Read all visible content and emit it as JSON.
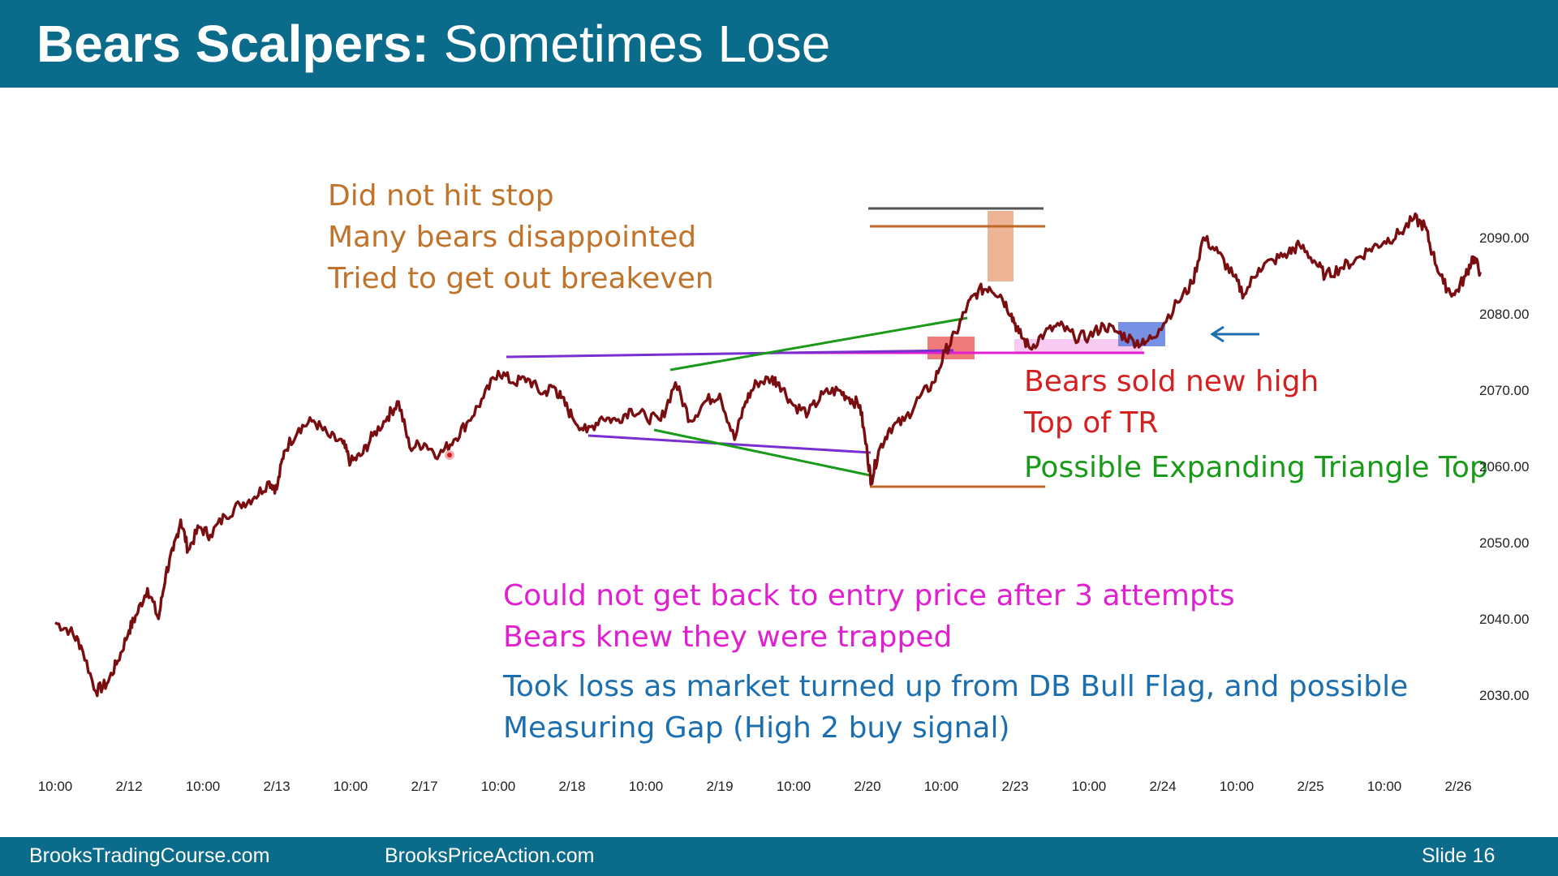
{
  "slide": {
    "title_bold": "Bears Scalpers:",
    "title_rest": "Sometimes Lose",
    "footer_left": "BrooksTradingCourse.com",
    "footer_center": "BrooksPriceAction.com",
    "footer_right": "Slide  16"
  },
  "colors": {
    "header_bg": "#0b6b8a",
    "price": "#7a0d10",
    "orange_text": "#c0732a",
    "red_text": "#d42020",
    "green": "#1a9a1a",
    "purple": "#7a2fd0",
    "magenta": "#e020d0",
    "blue": "#1c6fae"
  },
  "annotations": {
    "stop_1": "Did not hit stop",
    "stop_2": "Many bears disappointed",
    "stop_3": "Tried to get out breakeven",
    "sold_1": "Bears sold new high",
    "sold_2": "Top of TR",
    "triangle": "Possible Expanding Triangle Top",
    "trap_1": "Could not get back to entry price after 3 attempts",
    "trap_2": "Bears knew they were trapped",
    "loss_1": "Took loss as market turned up from DB Bull Flag, and possible",
    "loss_2": "Measuring Gap (High 2 buy signal)"
  },
  "chart_data": {
    "type": "line",
    "title": "",
    "xlabel": "",
    "ylabel": "",
    "ylim": [
      2025,
      2097
    ],
    "y_ticks": [
      "2090.00",
      "2080.00",
      "2070.00",
      "2060.00",
      "2050.00",
      "2040.00",
      "2030.00"
    ],
    "x_ticks": [
      "10:00",
      "2/12",
      "10:00",
      "2/13",
      "10:00",
      "2/17",
      "10:00",
      "2/18",
      "10:00",
      "2/19",
      "10:00",
      "2/20",
      "10:00",
      "2/23",
      "10:00",
      "2/24",
      "10:00",
      "2/25",
      "10:00",
      "2/26"
    ],
    "series": [
      {
        "values": [
          [
            0.0,
            2039.5
          ],
          [
            0.2,
            2038.5
          ],
          [
            0.35,
            2036.5
          ],
          [
            0.55,
            2030.5
          ],
          [
            0.7,
            2031.5
          ],
          [
            0.85,
            2034.5
          ],
          [
            1.0,
            2038.5
          ],
          [
            1.1,
            2040.5
          ],
          [
            1.25,
            2044.0
          ],
          [
            1.4,
            2040.0
          ],
          [
            1.5,
            2046.0
          ],
          [
            1.6,
            2049.0
          ],
          [
            1.7,
            2053.0
          ],
          [
            1.8,
            2049.0
          ],
          [
            1.95,
            2052.0
          ],
          [
            2.1,
            2051.0
          ],
          [
            2.3,
            2053.5
          ],
          [
            2.5,
            2055.0
          ],
          [
            2.7,
            2056.0
          ],
          [
            2.9,
            2058.0
          ],
          [
            3.0,
            2057.0
          ],
          [
            3.1,
            2062.0
          ],
          [
            3.3,
            2065.0
          ],
          [
            3.5,
            2066.0
          ],
          [
            3.7,
            2064.0
          ],
          [
            3.9,
            2063.0
          ],
          [
            4.0,
            2060.5
          ],
          [
            4.15,
            2061.5
          ],
          [
            4.3,
            2064.0
          ],
          [
            4.5,
            2066.5
          ],
          [
            4.65,
            2068.5
          ],
          [
            4.8,
            2062.5
          ],
          [
            5.0,
            2063.0
          ],
          [
            5.2,
            2061.5
          ],
          [
            5.4,
            2063.5
          ],
          [
            5.6,
            2066.0
          ],
          [
            5.8,
            2069.0
          ],
          [
            6.0,
            2072.5
          ],
          [
            6.2,
            2071.0
          ],
          [
            6.4,
            2071.5
          ],
          [
            6.6,
            2069.5
          ],
          [
            6.75,
            2070.5
          ],
          [
            6.85,
            2069.0
          ],
          [
            7.0,
            2066.5
          ],
          [
            7.2,
            2064.5
          ],
          [
            7.4,
            2066.5
          ],
          [
            7.6,
            2066.0
          ],
          [
            7.8,
            2067.5
          ],
          [
            8.0,
            2066.5
          ],
          [
            8.2,
            2066.0
          ],
          [
            8.4,
            2071.0
          ],
          [
            8.6,
            2066.0
          ],
          [
            8.8,
            2068.5
          ],
          [
            9.0,
            2069.5
          ],
          [
            9.2,
            2063.5
          ],
          [
            9.35,
            2068.5
          ],
          [
            9.5,
            2071.0
          ],
          [
            9.7,
            2071.5
          ],
          [
            9.8,
            2071.0
          ],
          [
            10.0,
            2068.0
          ],
          [
            10.2,
            2067.0
          ],
          [
            10.4,
            2069.5
          ],
          [
            10.6,
            2070.0
          ],
          [
            10.75,
            2069.0
          ],
          [
            10.9,
            2068.0
          ],
          [
            11.0,
            2061.5
          ],
          [
            11.05,
            2058.0
          ],
          [
            11.15,
            2062.0
          ],
          [
            11.3,
            2065.0
          ],
          [
            11.5,
            2066.0
          ],
          [
            11.7,
            2069.0
          ],
          [
            11.9,
            2071.0
          ],
          [
            12.05,
            2075.0
          ],
          [
            12.2,
            2077.5
          ],
          [
            12.35,
            2081.0
          ],
          [
            12.5,
            2083.0
          ],
          [
            12.65,
            2083.5
          ],
          [
            12.8,
            2082.5
          ],
          [
            12.95,
            2080.0
          ],
          [
            13.05,
            2077.5
          ],
          [
            13.2,
            2075.5
          ],
          [
            13.4,
            2077.5
          ],
          [
            13.6,
            2078.5
          ],
          [
            13.8,
            2077.0
          ],
          [
            14.0,
            2077.0
          ],
          [
            14.2,
            2078.5
          ],
          [
            14.4,
            2077.5
          ],
          [
            14.6,
            2076.5
          ],
          [
            14.75,
            2076.0
          ],
          [
            14.95,
            2078.0
          ],
          [
            15.2,
            2081.5
          ],
          [
            15.4,
            2084.0
          ],
          [
            15.55,
            2090.0
          ],
          [
            15.75,
            2088.0
          ],
          [
            15.95,
            2085.0
          ],
          [
            16.1,
            2082.5
          ],
          [
            16.3,
            2086.0
          ],
          [
            16.5,
            2087.0
          ],
          [
            16.7,
            2088.0
          ],
          [
            16.85,
            2089.0
          ],
          [
            17.05,
            2087.0
          ],
          [
            17.2,
            2085.0
          ],
          [
            17.4,
            2086.0
          ],
          [
            17.6,
            2087.0
          ],
          [
            17.8,
            2088.5
          ],
          [
            18.0,
            2089.5
          ],
          [
            18.2,
            2090.5
          ],
          [
            18.4,
            2092.5
          ],
          [
            18.55,
            2091.5
          ],
          [
            18.65,
            2088.0
          ],
          [
            18.8,
            2084.0
          ],
          [
            18.95,
            2082.5
          ],
          [
            19.1,
            2085.0
          ],
          [
            19.2,
            2087.5
          ],
          [
            19.3,
            2085.5
          ]
        ]
      }
    ],
    "grid": false,
    "legend": "none"
  }
}
